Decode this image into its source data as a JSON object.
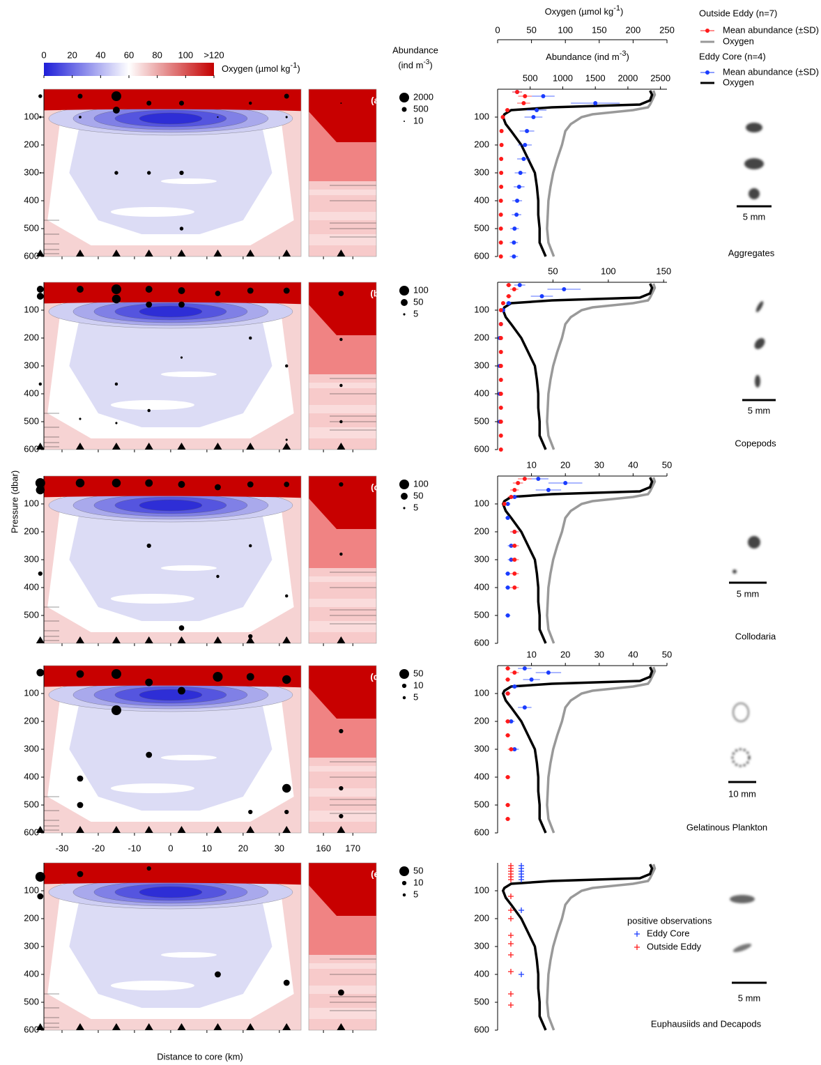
{
  "colorbar": {
    "label": [
      "Oxygen (µmol kg",
      "-1",
      ")"
    ],
    "lim": [
      0,
      120
    ],
    "ticks": [
      0,
      20,
      40,
      60,
      80,
      100,
      {
        "value": 120,
        "label": ">120"
      }
    ]
  },
  "abundance_header": [
    "Abundance",
    "(ind m",
    "-3",
    ")"
  ],
  "y_label": "Pressure (dbar)",
  "x_label": "Distance to core (km)",
  "section": {
    "xlim": [
      -35,
      36
    ],
    "xticks": [
      -30,
      -20,
      -10,
      0,
      10,
      20,
      30
    ],
    "right_xlim": [
      155,
      178
    ],
    "right_xticks": [
      160,
      170
    ],
    "ylim": [
      0,
      600
    ],
    "stations": [
      -36,
      -25,
      -15,
      -6,
      3,
      13,
      22,
      32
    ],
    "right_station": 166
  },
  "oxygen_axis": {
    "label": [
      "Oxygen (µmol kg",
      "-1",
      ")"
    ],
    "xlim": [
      0,
      250
    ],
    "xticks": [
      0,
      50,
      100,
      150,
      200,
      250
    ]
  },
  "abundance_axis_label": [
    "Abundance (ind m",
    "-3",
    ")"
  ],
  "profile_yticks": [
    100,
    200,
    300,
    400,
    500,
    600
  ],
  "oxygen_profiles": {
    "pressure": [
      5,
      20,
      40,
      55,
      65,
      75,
      90,
      100,
      125,
      150,
      200,
      250,
      300,
      350,
      400,
      450,
      500,
      550,
      600
    ],
    "series": [
      {
        "color": "#999999",
        "values": [
          230,
          232,
          228,
          225,
          222,
          200,
          140,
          124,
          108,
          100,
          95,
          88,
          82,
          78,
          75,
          74,
          73,
          75,
          83
        ]
      },
      {
        "color": "#000000",
        "values": [
          225,
          228,
          225,
          210,
          80,
          20,
          10,
          8,
          12,
          20,
          35,
          45,
          55,
          58,
          60,
          60,
          62,
          62,
          71
        ]
      }
    ]
  },
  "legend": {
    "outside_title": "Outside Eddy (n=7)",
    "outside_mean": "Mean abundance (±SD)",
    "outside_oxygen": "Oxygen",
    "core_title": "Eddy Core (n=4)",
    "core_mean": "Mean abundance (±SD)",
    "core_oxygen": "Oxygen"
  },
  "chart_data": [
    {
      "type": "bubble",
      "label": "(a)",
      "yticks": [
        100,
        200,
        300,
        400,
        500,
        600
      ],
      "size_key": [
        2000,
        500,
        10
      ],
      "bubbles": {
        "x": [
          -36,
          -36,
          -36,
          -25,
          -25,
          -15,
          -15,
          -15,
          -6,
          -6,
          3,
          3,
          3,
          13,
          22,
          32,
          32
        ],
        "y": [
          25,
          100,
          300,
          25,
          100,
          25,
          75,
          300,
          50,
          300,
          50,
          300,
          500,
          100,
          50,
          25,
          100
        ],
        "sizes": [
          300,
          100,
          50,
          500,
          150,
          2000,
          1000,
          300,
          500,
          300,
          500,
          400,
          300,
          50,
          200,
          500,
          100
        ]
      },
      "right_bubbles": {
        "x": [
          166
        ],
        "y": [
          50
        ],
        "sizes": [
          10
        ]
      },
      "profile": {
        "xlim": [
          0,
          2600
        ],
        "xticks": [
          500,
          1000,
          1500,
          2000,
          2500
        ],
        "pressure": [
          10,
          25,
          50,
          75,
          100,
          150,
          200,
          250,
          300,
          350,
          400,
          450,
          500,
          550,
          600
        ],
        "series": [
          {
            "color": "#1a3cff",
            "values": [
              300,
              700,
              1500,
              600,
              550,
              450,
              420,
              400,
              350,
              330,
              300,
              290,
              260,
              250,
              250
            ]
          },
          {
            "color": "#ff1a1a",
            "values": [
              300,
              420,
              400,
              150,
              80,
              60,
              60,
              55,
              55,
              55,
              50,
              50,
              50,
              50,
              50
            ]
          }
        ]
      },
      "taxon": "Aggregates",
      "scale_bar": "5 mm"
    },
    {
      "type": "bubble",
      "label": "(b)",
      "yticks": [
        100,
        200,
        300,
        400,
        500,
        600
      ],
      "size_key": [
        100,
        50,
        5
      ],
      "bubbles": {
        "x": [
          -36,
          -36,
          -25,
          -15,
          -15,
          -6,
          -6,
          3,
          3,
          13,
          22,
          32,
          -36,
          -15,
          -25,
          -15,
          -6,
          3,
          22,
          32,
          32
        ],
        "y": [
          25,
          50,
          25,
          25,
          60,
          25,
          80,
          30,
          80,
          40,
          30,
          30,
          365,
          365,
          490,
          505,
          460,
          270,
          200,
          300,
          565
        ],
        "sizes": [
          50,
          50,
          50,
          100,
          80,
          50,
          40,
          50,
          40,
          30,
          40,
          40,
          10,
          10,
          5,
          5,
          10,
          5,
          10,
          10,
          5
        ]
      },
      "right_bubbles": {
        "x": [
          166,
          166,
          166,
          166
        ],
        "y": [
          40,
          205,
          370,
          500
        ],
        "sizes": [
          30,
          10,
          10,
          10
        ]
      },
      "profile": {
        "xlim": [
          0,
          153
        ],
        "xticks": [
          50,
          100,
          150
        ],
        "pressure": [
          10,
          25,
          50,
          75,
          100,
          150,
          200,
          250,
          300,
          350,
          400,
          450,
          500,
          550,
          600
        ],
        "series": [
          {
            "color": "#1a3cff",
            "values": [
              20,
              60,
              40,
              10,
              5,
              3,
              2,
              null,
              2,
              null,
              2,
              null,
              2,
              null,
              null
            ]
          },
          {
            "color": "#ff1a1a",
            "values": [
              10,
              15,
              10,
              5,
              3,
              3,
              3,
              3,
              3,
              3,
              3,
              3,
              3,
              3,
              3
            ]
          }
        ]
      },
      "taxon": "Copepods",
      "scale_bar": "5 mm"
    },
    {
      "type": "bubble",
      "label": "(c)",
      "yticks": [
        100,
        200,
        300,
        400,
        500
      ],
      "size_key": [
        100,
        50,
        5
      ],
      "bubbles": {
        "x": [
          -36,
          -36,
          -25,
          -15,
          -6,
          3,
          13,
          22,
          32,
          -36,
          -6,
          3,
          13,
          22,
          32,
          22
        ],
        "y": [
          25,
          50,
          25,
          25,
          25,
          30,
          40,
          30,
          30,
          350,
          250,
          545,
          360,
          250,
          430,
          575
        ],
        "sizes": [
          100,
          80,
          80,
          80,
          60,
          50,
          40,
          40,
          30,
          20,
          20,
          30,
          10,
          10,
          10,
          20
        ]
      },
      "right_bubbles": {
        "x": [
          166,
          166
        ],
        "y": [
          30,
          280
        ],
        "sizes": [
          20,
          10
        ]
      },
      "profile": {
        "xlim": [
          0,
          50
        ],
        "xticks": [
          10,
          20,
          30,
          40,
          50
        ],
        "pressure": [
          10,
          25,
          50,
          75,
          100,
          150,
          200,
          250,
          300,
          350,
          400,
          450,
          500,
          550,
          600
        ],
        "series": [
          {
            "color": "#1a3cff",
            "values": [
              12,
              20,
              15,
              5,
              3,
              3,
              5,
              4,
              4,
              3,
              3,
              null,
              3,
              null,
              null
            ]
          },
          {
            "color": "#ff1a1a",
            "values": [
              8,
              6,
              5,
              4,
              2,
              null,
              5,
              5,
              5,
              5,
              5,
              null,
              null,
              null,
              null
            ]
          }
        ]
      },
      "taxon": "Collodaria",
      "scale_bar": "5 mm"
    },
    {
      "type": "bubble",
      "label": "(d)",
      "yticks": [
        100,
        200,
        300,
        400,
        500,
        600
      ],
      "size_key": [
        50,
        10,
        5
      ],
      "bubbles": {
        "x": [
          -36,
          -25,
          -15,
          -6,
          3,
          13,
          22,
          32,
          -15,
          -6,
          -25,
          -25,
          32,
          22,
          32
        ],
        "y": [
          25,
          30,
          30,
          60,
          90,
          40,
          40,
          50,
          160,
          320,
          405,
          500,
          440,
          525,
          525
        ],
        "sizes": [
          30,
          30,
          50,
          30,
          30,
          50,
          30,
          40,
          50,
          20,
          20,
          20,
          40,
          10,
          10
        ]
      },
      "right_bubbles": {
        "x": [
          166,
          166,
          166
        ],
        "y": [
          235,
          440,
          540
        ],
        "sizes": [
          10,
          10,
          10
        ]
      },
      "profile": {
        "xlim": [
          0,
          50
        ],
        "xticks": [
          10,
          20,
          30,
          40,
          50
        ],
        "pressure": [
          10,
          25,
          50,
          75,
          100,
          150,
          200,
          250,
          300,
          350,
          400,
          450,
          500,
          550,
          600
        ],
        "series": [
          {
            "color": "#1a3cff",
            "values": [
              8,
              15,
              10,
              5,
              3,
              8,
              4,
              null,
              5,
              null,
              null,
              null,
              null,
              null,
              null
            ]
          },
          {
            "color": "#ff1a1a",
            "values": [
              3,
              5,
              3,
              null,
              3,
              null,
              3,
              3,
              4,
              null,
              3,
              null,
              3,
              3,
              null
            ]
          }
        ]
      },
      "taxon": "Gelatinous Plankton",
      "scale_bar": "10 mm"
    },
    {
      "type": "bubble",
      "label": "(e)",
      "yticks": [
        100,
        200,
        300,
        400,
        500,
        600
      ],
      "size_key": [
        50,
        10,
        5
      ],
      "bubbles": {
        "x": [
          -36,
          -36,
          -25,
          -6,
          13,
          32
        ],
        "y": [
          50,
          120,
          40,
          20,
          400,
          430
        ],
        "sizes": [
          50,
          20,
          20,
          10,
          20,
          20
        ]
      },
      "right_bubbles": {
        "x": [
          166
        ],
        "y": [
          465
        ],
        "sizes": [
          20
        ]
      },
      "positive_observations": {
        "title": "positive observations",
        "series": [
          {
            "name": "Eddy Core",
            "color": "#1a3cff",
            "pressures": [
              10,
              20,
              30,
              40,
              50,
              60,
              170,
              400
            ]
          },
          {
            "name": "Outside Eddy",
            "color": "#ff1a1a",
            "pressures": [
              10,
              20,
              30,
              40,
              50,
              60,
              120,
              170,
              200,
              260,
              290,
              330,
              390,
              470,
              510
            ]
          }
        ]
      },
      "taxon": "Euphausiids and Decapods",
      "scale_bar": "5 mm"
    }
  ]
}
